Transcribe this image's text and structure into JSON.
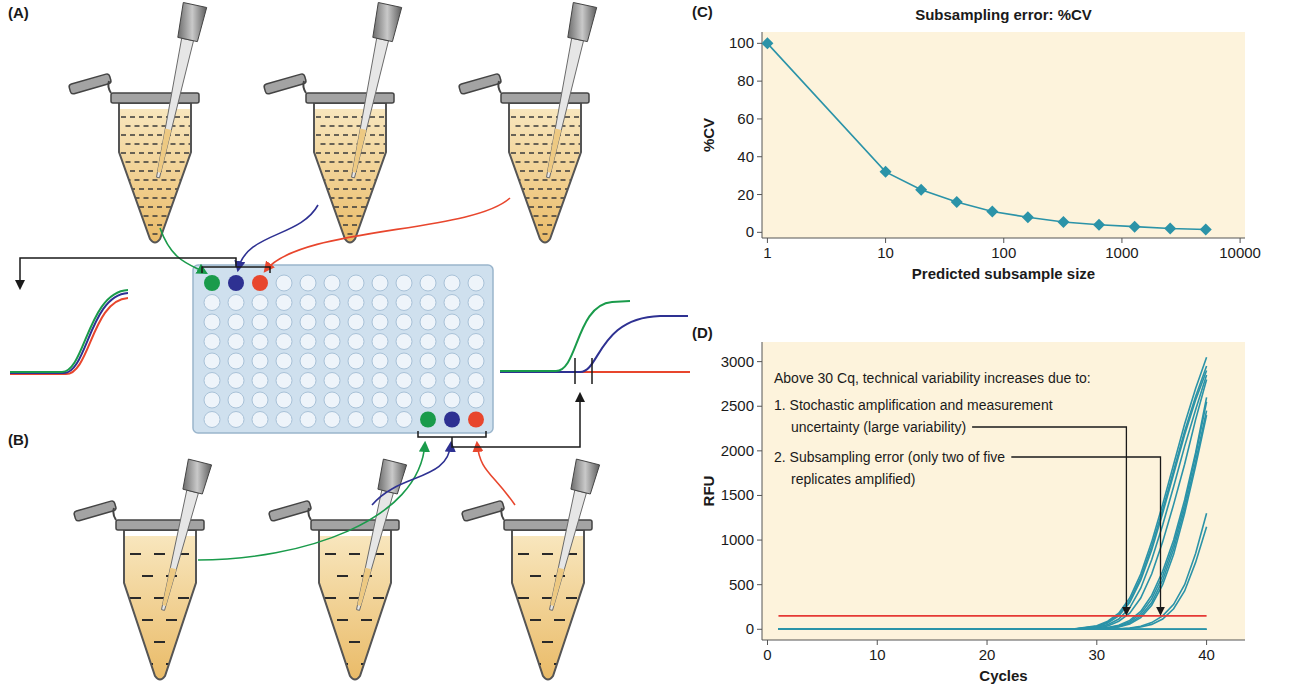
{
  "panel_labels": [
    "(A)",
    "(B)",
    "(C)",
    "(D)"
  ],
  "chart_data": [
    {
      "type": "line",
      "title": "Subsampling error: %CV",
      "x_label": "Predicted subsample size",
      "y_label": "%CV",
      "x": [
        1,
        10,
        20,
        40,
        80,
        160,
        320,
        640,
        1280,
        2560,
        5120
      ],
      "values": [
        100,
        32,
        22.5,
        16,
        11,
        8,
        5.5,
        4,
        3,
        2,
        1.5
      ],
      "color": "#2b93a8",
      "marker": "diamond",
      "log": "x",
      "xlim": [
        0.9,
        11000
      ],
      "xticks": [
        1,
        10,
        100,
        1000,
        10000
      ],
      "ylim": [
        -3,
        106
      ],
      "yticks": [
        0,
        20,
        40,
        60,
        80,
        100
      ],
      "grid": false
    },
    {
      "type": "line",
      "x_label": "Cycles",
      "y_label": "RFU",
      "x": [
        1,
        10,
        20,
        25,
        28,
        30,
        31,
        32,
        33,
        34,
        35,
        36,
        37,
        38,
        39,
        40
      ],
      "series": [
        {
          "values": [
            0,
            0,
            0,
            0,
            5,
            40,
            90,
            180,
            350,
            620,
            980,
            1400,
            1850,
            2300,
            2700,
            3050
          ]
        },
        {
          "values": [
            0,
            0,
            0,
            0,
            4,
            35,
            80,
            165,
            320,
            580,
            930,
            1340,
            1780,
            2220,
            2610,
            2950
          ]
        },
        {
          "values": [
            0,
            0,
            0,
            0,
            3,
            30,
            70,
            150,
            300,
            550,
            890,
            1300,
            1740,
            2180,
            2570,
            2900
          ]
        },
        {
          "values": [
            0,
            0,
            0,
            0,
            2,
            22,
            52,
            115,
            240,
            460,
            780,
            1170,
            1600,
            2050,
            2460,
            2850
          ]
        },
        {
          "values": [
            0,
            0,
            0,
            0,
            1,
            15,
            38,
            90,
            180,
            350,
            620,
            980,
            1400,
            1850,
            2350,
            2800
          ]
        },
        {
          "values": [
            0,
            0,
            0,
            0,
            0,
            8,
            20,
            45,
            100,
            200,
            380,
            650,
            1000,
            1450,
            1980,
            2600
          ]
        },
        {
          "values": [
            0,
            0,
            0,
            0,
            0,
            6,
            16,
            38,
            85,
            175,
            340,
            600,
            950,
            1400,
            1950,
            2550
          ]
        },
        {
          "values": [
            0,
            0,
            0,
            0,
            0,
            5,
            12,
            30,
            70,
            150,
            300,
            550,
            900,
            1350,
            1880,
            2450
          ]
        },
        {
          "values": [
            0,
            0,
            0,
            0,
            0,
            4,
            10,
            25,
            60,
            130,
            270,
            500,
            840,
            1300,
            1830,
            2400
          ]
        },
        {
          "values": [
            0,
            0,
            0,
            0,
            0,
            0,
            2,
            6,
            15,
            35,
            75,
            150,
            280,
            500,
            850,
            1300
          ]
        },
        {
          "values": [
            0,
            0,
            0,
            0,
            0,
            0,
            1,
            4,
            10,
            25,
            55,
            115,
            230,
            430,
            750,
            1150
          ]
        },
        {
          "values": [
            0,
            0,
            0,
            0,
            0,
            0,
            0,
            0,
            0,
            0,
            0,
            0,
            0,
            0,
            0,
            0
          ]
        },
        {
          "values": [
            0,
            0,
            0,
            0,
            0,
            0,
            0,
            0,
            0,
            0,
            0,
            0,
            0,
            0,
            0,
            0
          ]
        },
        {
          "values": [
            0,
            0,
            0,
            0,
            0,
            0,
            0,
            0,
            0,
            0,
            0,
            0,
            0,
            0,
            0,
            0
          ]
        },
        {
          "values": [
            150,
            150,
            150,
            150,
            150,
            150,
            150,
            150,
            150,
            150,
            150,
            150,
            150,
            150,
            150,
            150
          ],
          "color": "#e53935",
          "line_style": "solid"
        }
      ],
      "color": "#2b93a8",
      "xlim": [
        -0.5,
        43.5
      ],
      "xticks": [
        0,
        10,
        20,
        30,
        40
      ],
      "ylim": [
        -120,
        3220
      ],
      "yticks": [
        0,
        500,
        1000,
        1500,
        2000,
        2500,
        3000
      ],
      "grid": false,
      "annotations": [
        {
          "text": "Above 30 Cq, technical variability increases due to:"
        },
        {
          "lines": [
            "1. Stochastic amplification and measurement",
            "uncertainty (large variability)"
          ],
          "x": 32.7,
          "y": 150
        },
        {
          "lines": [
            "2. Subsampling error (only two of five",
            "replicates amplified)"
          ],
          "x": 35.8,
          "y": 150
        }
      ]
    }
  ]
}
